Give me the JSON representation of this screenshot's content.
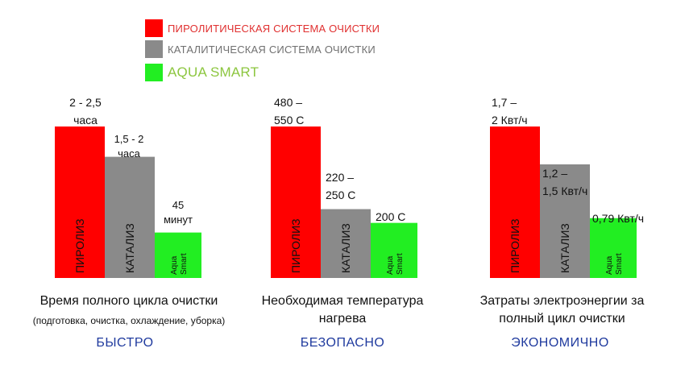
{
  "legend": [
    {
      "label": "ПИРОЛИТИЧЕСКАЯ СИСТЕМА ОЧИСТКИ",
      "color": "#ff0000",
      "text_color": "#e03030"
    },
    {
      "label": "КАТАЛИТИЧЕСКАЯ СИСТЕМА ОЧИСТКИ",
      "color": "#8a8a8a",
      "text_color": "#707070"
    },
    {
      "label": "AQUA SMART",
      "color": "#22ee22",
      "text_color": "#8cc63f"
    }
  ],
  "colors": {
    "pyrolysis": "#ff0000",
    "catalysis": "#8a8a8a",
    "aqua": "#22ee22",
    "tag": "#1f3a9e"
  },
  "chart_data": [
    {
      "type": "bar",
      "title": "Время полного цикла очистки",
      "note": "(подготовка, очистка, охлаждение, уборка)",
      "tag": "БЫСТРО",
      "unit": "часы",
      "categories": [
        "ПИРОЛИЗ",
        "КАТАЛИЗ",
        "Aqua Smart"
      ],
      "values": [
        2.5,
        2.0,
        0.75
      ],
      "value_labels": [
        "2 - 2,5\nчаса",
        "1,5 - 2\nчаса",
        "45\nминут"
      ]
    },
    {
      "type": "bar",
      "title": "Необходимая температура\nнагрева",
      "note": "",
      "tag": "БЕЗОПАСНО",
      "unit": "C",
      "categories": [
        "ПИРОЛИЗ",
        "КАТАЛИЗ",
        "Aqua Smart"
      ],
      "values": [
        550,
        250,
        200
      ],
      "value_labels": [
        "480 –\n550 С",
        "220 –\n250 С",
        "200 С"
      ]
    },
    {
      "type": "bar",
      "title": "Затраты электроэнергии за\nполный цикл очистки",
      "note": "",
      "tag": "ЭКОНОМИЧНО",
      "unit": "Квт/ч",
      "categories": [
        "ПИРОЛИЗ",
        "КАТАЛИЗ",
        "Aqua Smart"
      ],
      "values": [
        2.0,
        1.5,
        0.79
      ],
      "value_labels": [
        "1,7 –\n2 Квт/ч",
        "1,2 –\n1,5 Квт/ч",
        "0,79 Квт/ч"
      ]
    }
  ]
}
